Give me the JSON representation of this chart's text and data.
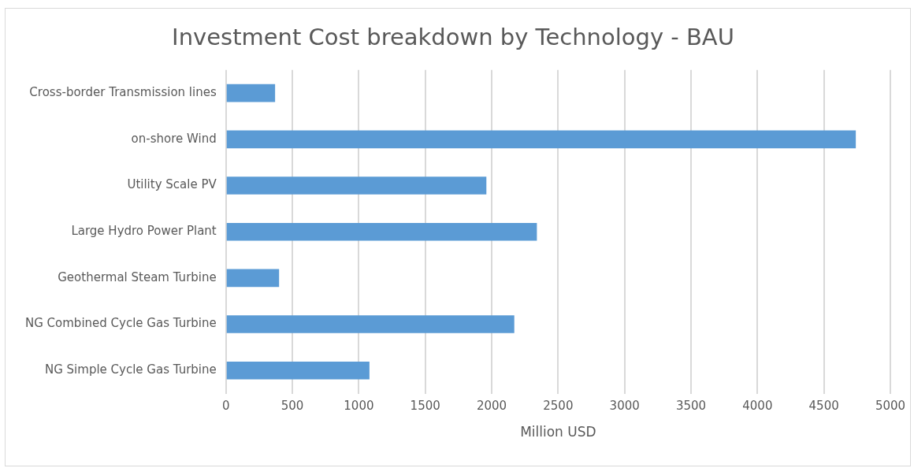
{
  "chart_data": {
    "type": "bar",
    "orientation": "horizontal",
    "title": "Investment Cost breakdown by Technology - BAU",
    "xlabel": "Million USD",
    "categories": [
      "Cross-border Transmission lines",
      "on-shore Wind",
      "Utility Scale PV",
      "Large Hydro Power Plant",
      "Geothermal Steam Turbine",
      "NG Combined Cycle Gas Turbine",
      "NG Simple Cycle Gas Turbine"
    ],
    "values": [
      370,
      4740,
      1960,
      2340,
      400,
      2170,
      1080
    ],
    "color": "#5b9bd5",
    "xlim": [
      0,
      5000
    ],
    "xticks": [
      0,
      500,
      1000,
      1500,
      2000,
      2500,
      3000,
      3500,
      4000,
      4500,
      5000
    ],
    "grid": "x"
  }
}
